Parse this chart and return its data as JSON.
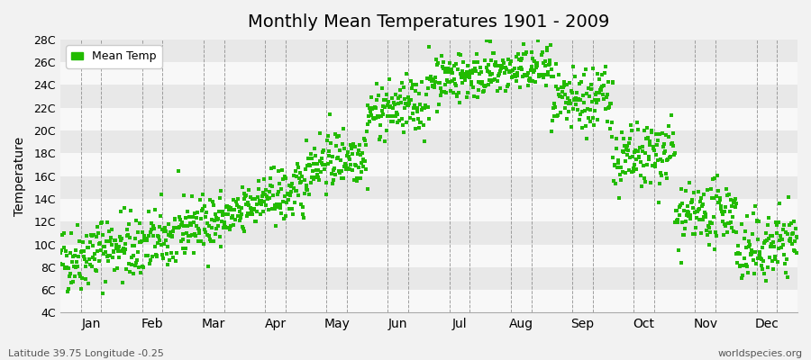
{
  "title": "Monthly Mean Temperatures 1901 - 2009",
  "ylabel": "Temperature",
  "xlabel_labels": [
    "Jan",
    "Feb",
    "Mar",
    "Apr",
    "May",
    "Jun",
    "Jul",
    "Aug",
    "Sep",
    "Oct",
    "Nov",
    "Dec"
  ],
  "ytick_labels": [
    "4C",
    "6C",
    "8C",
    "10C",
    "12C",
    "14C",
    "16C",
    "18C",
    "20C",
    "22C",
    "24C",
    "26C",
    "28C"
  ],
  "ytick_values": [
    4,
    6,
    8,
    10,
    12,
    14,
    16,
    18,
    20,
    22,
    24,
    26,
    28
  ],
  "ylim": [
    4,
    28
  ],
  "dot_color": "#22bb00",
  "legend_label": "Mean Temp",
  "footer_left": "Latitude 39.75 Longitude -0.25",
  "footer_right": "worldspecies.org",
  "bg_color": "#f2f2f2",
  "band_color_light": "#f8f8f8",
  "band_color_dark": "#e8e8e8",
  "monthly_means": [
    8.5,
    9.5,
    11.5,
    13.5,
    17.0,
    21.5,
    24.5,
    25.0,
    22.0,
    17.0,
    12.0,
    9.0
  ],
  "monthly_stds": [
    1.5,
    1.5,
    1.2,
    1.2,
    1.3,
    1.2,
    1.1,
    1.0,
    1.5,
    1.5,
    1.3,
    1.5
  ],
  "monthly_trends": [
    0.015,
    0.012,
    0.01,
    0.012,
    0.01,
    0.008,
    0.005,
    0.005,
    0.01,
    0.012,
    0.012,
    0.015
  ],
  "n_years": 109,
  "start_year": 1901,
  "vlines_per_month": 2,
  "dot_size": 5,
  "dot_marker": "s"
}
